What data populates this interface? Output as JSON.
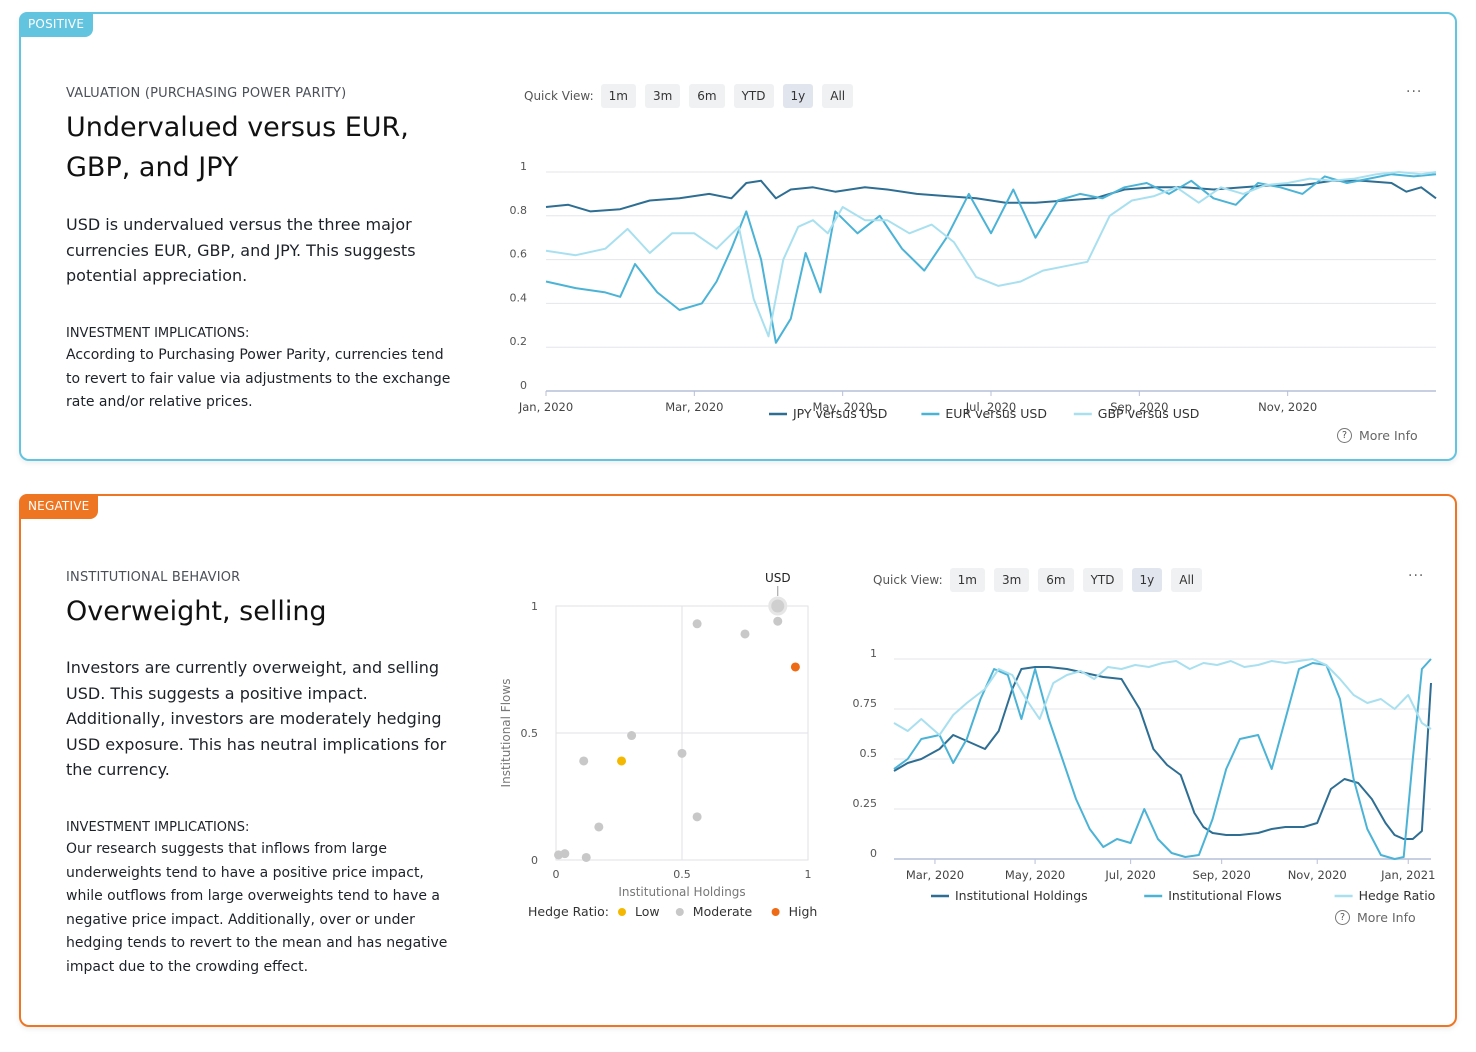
{
  "cards": [
    {
      "tag": "POSITIVE",
      "category": "VALUATION (PURCHASING POWER PARITY)",
      "headline_line1": "Undervalued versus EUR,",
      "headline_line2": "GBP, and JPY",
      "body_lines": [
        "USD is undervalued versus the three major",
        "currencies EUR, GBP, and JPY. This suggests",
        "potential appreciation."
      ],
      "implications_heading": "INVESTMENT IMPLICATIONS:",
      "implications_lines": [
        "According to Purchasing Power Parity, currencies tend",
        "to revert to fair value via adjustments to the exchange",
        "rate and/or relative prices."
      ],
      "quick_view": {
        "label": "Quick View:",
        "options": [
          "1m",
          "3m",
          "6m",
          "YTD",
          "1y",
          "All"
        ],
        "active": "1y"
      },
      "more_info": "More Info",
      "menu": "···"
    },
    {
      "tag": "NEGATIVE",
      "category": "INSTITUTIONAL BEHAVIOR",
      "headline_line1": "Overweight, selling",
      "body_lines": [
        "Investors are currently overweight, and selling",
        "USD. This suggests a positive impact.",
        "Additionally, investors are moderately hedging",
        "USD exposure. This has neutral implications for",
        "the currency."
      ],
      "implications_heading": "INVESTMENT IMPLICATIONS:",
      "implications_lines": [
        "Our research suggests that inflows from large",
        "underweights tend to have a positive price impact,",
        "while outflows from large overweights tend to have a",
        "negative price impact. Additionally, over or under",
        "hedging tends to revert to the mean and has negative",
        "impact due to the crowding effect."
      ],
      "quick_view": {
        "label": "Quick View:",
        "options": [
          "1m",
          "3m",
          "6m",
          "YTD",
          "1y",
          "All"
        ],
        "active": "1y"
      },
      "more_info": "More Info",
      "menu": "···"
    }
  ],
  "colors": {
    "positive": "#63c4df",
    "negative": "#ee7622",
    "dark_blue": "#2e6e93",
    "mid_blue": "#4bb3d6",
    "light_blue": "#a8e0f0",
    "low": "#f5b800",
    "moderate": "#c8c8c8",
    "high": "#ee6a14"
  },
  "chart_data": [
    {
      "type": "line",
      "x_range": [
        "2020-01-01",
        "2020-12-31"
      ],
      "ylim": [
        0,
        1
      ],
      "y_ticks": [
        "0",
        "0.2",
        "0.4",
        "0.6",
        "0.8",
        "1"
      ],
      "x_ticks": [
        "Jan, 2020",
        "Mar, 2020",
        "May, 2020",
        "Jul, 2020",
        "Sep, 2020",
        "Nov, 2020"
      ],
      "legend_position": "bottom",
      "series": [
        {
          "name": "JPY versus USD",
          "color": "#2e6e93",
          "x_month": [
            0,
            0.3,
            0.6,
            1,
            1.4,
            1.8,
            2.2,
            2.5,
            2.7,
            2.9,
            3.1,
            3.3,
            3.6,
            3.9,
            4.3,
            4.6,
            5,
            5.4,
            5.8,
            6.2,
            6.6,
            7,
            7.4,
            7.8,
            8.2,
            8.6,
            9,
            9.4,
            9.8,
            10.2,
            10.6,
            11,
            11.4,
            11.6,
            11.8,
            12
          ],
          "values": [
            0.84,
            0.85,
            0.82,
            0.83,
            0.87,
            0.88,
            0.9,
            0.88,
            0.95,
            0.96,
            0.88,
            0.92,
            0.93,
            0.91,
            0.93,
            0.92,
            0.9,
            0.89,
            0.88,
            0.86,
            0.86,
            0.87,
            0.88,
            0.92,
            0.93,
            0.93,
            0.92,
            0.93,
            0.94,
            0.94,
            0.96,
            0.96,
            0.95,
            0.91,
            0.93,
            0.88
          ]
        },
        {
          "name": "EUR versus USD",
          "color": "#4bb3d6",
          "x_month": [
            0,
            0.4,
            0.8,
            1,
            1.2,
            1.5,
            1.8,
            2.1,
            2.3,
            2.5,
            2.7,
            2.9,
            3.1,
            3.3,
            3.5,
            3.7,
            3.9,
            4.2,
            4.5,
            4.8,
            5.1,
            5.4,
            5.7,
            6,
            6.3,
            6.6,
            6.9,
            7.2,
            7.5,
            7.8,
            8.1,
            8.4,
            8.7,
            9,
            9.3,
            9.6,
            9.9,
            10.2,
            10.5,
            10.8,
            11.1,
            11.4,
            11.7,
            12
          ],
          "values": [
            0.5,
            0.47,
            0.45,
            0.43,
            0.58,
            0.45,
            0.37,
            0.4,
            0.5,
            0.65,
            0.82,
            0.6,
            0.22,
            0.33,
            0.63,
            0.45,
            0.82,
            0.72,
            0.8,
            0.65,
            0.55,
            0.7,
            0.9,
            0.72,
            0.92,
            0.7,
            0.87,
            0.9,
            0.88,
            0.93,
            0.95,
            0.9,
            0.96,
            0.88,
            0.85,
            0.95,
            0.93,
            0.9,
            0.98,
            0.95,
            0.97,
            0.99,
            0.98,
            0.99
          ]
        },
        {
          "name": "GBP versus USD",
          "color": "#a8e0f0",
          "x_month": [
            0,
            0.4,
            0.8,
            1.1,
            1.4,
            1.7,
            2,
            2.3,
            2.6,
            2.8,
            3,
            3.2,
            3.4,
            3.6,
            3.8,
            4,
            4.3,
            4.6,
            4.9,
            5.2,
            5.5,
            5.8,
            6.1,
            6.4,
            6.7,
            7,
            7.3,
            7.6,
            7.9,
            8.2,
            8.5,
            8.8,
            9.1,
            9.4,
            9.7,
            10,
            10.3,
            10.6,
            10.9,
            11.2,
            11.5,
            11.8,
            12
          ],
          "values": [
            0.64,
            0.62,
            0.65,
            0.74,
            0.63,
            0.72,
            0.72,
            0.65,
            0.75,
            0.42,
            0.25,
            0.6,
            0.75,
            0.78,
            0.72,
            0.84,
            0.78,
            0.78,
            0.72,
            0.76,
            0.68,
            0.52,
            0.48,
            0.5,
            0.55,
            0.57,
            0.59,
            0.8,
            0.87,
            0.89,
            0.93,
            0.86,
            0.93,
            0.9,
            0.94,
            0.95,
            0.97,
            0.96,
            0.97,
            0.99,
            1,
            0.99,
            1
          ]
        }
      ]
    },
    {
      "type": "scatter",
      "xlabel": "Institutional Holdings",
      "ylabel": "Institutional Flows",
      "xlim": [
        0,
        1
      ],
      "ylim": [
        0,
        1
      ],
      "x_ticks": [
        "0",
        "0.5",
        "1"
      ],
      "y_ticks": [
        "0",
        "0.5",
        "1"
      ],
      "highlight_label": "USD",
      "legend_title": "Hedge Ratio:",
      "legend_position": "bottom",
      "categories": [
        {
          "name": "Low",
          "color": "#f5b800"
        },
        {
          "name": "Moderate",
          "color": "#c8c8c8"
        },
        {
          "name": "High",
          "color": "#ee6a14"
        }
      ],
      "points": [
        {
          "x": 0.01,
          "y": 0.02,
          "cat": "Moderate"
        },
        {
          "x": 0.035,
          "y": 0.025,
          "cat": "Moderate"
        },
        {
          "x": 0.12,
          "y": 0.01,
          "cat": "Moderate"
        },
        {
          "x": 0.17,
          "y": 0.13,
          "cat": "Moderate"
        },
        {
          "x": 0.11,
          "y": 0.39,
          "cat": "Moderate"
        },
        {
          "x": 0.26,
          "y": 0.39,
          "cat": "Low"
        },
        {
          "x": 0.3,
          "y": 0.49,
          "cat": "Moderate"
        },
        {
          "x": 0.5,
          "y": 0.42,
          "cat": "Moderate"
        },
        {
          "x": 0.56,
          "y": 0.17,
          "cat": "Moderate"
        },
        {
          "x": 0.56,
          "y": 0.93,
          "cat": "Moderate"
        },
        {
          "x": 0.75,
          "y": 0.89,
          "cat": "Moderate"
        },
        {
          "x": 0.88,
          "y": 0.94,
          "cat": "Moderate"
        },
        {
          "x": 0.95,
          "y": 0.76,
          "cat": "High"
        },
        {
          "x": 0.88,
          "y": 1.0,
          "cat": "Moderate",
          "highlight": true
        }
      ]
    },
    {
      "type": "line",
      "x_range": [
        "2020-02-01",
        "2021-01-31"
      ],
      "ylim": [
        0,
        1
      ],
      "y_ticks": [
        "0",
        "0.25",
        "0.5",
        "0.75",
        "1"
      ],
      "x_ticks": [
        "Mar, 2020",
        "May, 2020",
        "Jul, 2020",
        "Sep, 2020",
        "Nov, 2020",
        "Jan, 2021"
      ],
      "legend_position": "bottom",
      "series": [
        {
          "name": "Institutional Holdings",
          "color": "#2e6e93",
          "x_month": [
            1,
            1.3,
            1.6,
            2,
            2.3,
            2.7,
            3,
            3.3,
            3.6,
            3.8,
            4.1,
            4.4,
            4.8,
            5.2,
            5.6,
            6,
            6.4,
            6.7,
            7,
            7.3,
            7.6,
            7.8,
            8,
            8.3,
            8.6,
            9,
            9.3,
            9.6,
            10,
            10.3,
            10.6,
            10.9,
            11.2,
            11.5,
            11.8,
            12,
            12.2,
            12.4,
            12.6,
            12.8
          ],
          "values": [
            0.44,
            0.48,
            0.5,
            0.55,
            0.62,
            0.58,
            0.55,
            0.64,
            0.85,
            0.95,
            0.96,
            0.96,
            0.95,
            0.93,
            0.91,
            0.9,
            0.75,
            0.55,
            0.47,
            0.42,
            0.23,
            0.16,
            0.13,
            0.12,
            0.12,
            0.13,
            0.15,
            0.16,
            0.16,
            0.18,
            0.35,
            0.4,
            0.38,
            0.3,
            0.18,
            0.12,
            0.1,
            0.1,
            0.14,
            0.88
          ]
        },
        {
          "name": "Institutional Flows",
          "color": "#4bb3d6",
          "x_month": [
            1,
            1.3,
            1.6,
            2,
            2.3,
            2.6,
            2.9,
            3.2,
            3.5,
            3.8,
            4.1,
            4.4,
            4.7,
            5,
            5.3,
            5.6,
            5.9,
            6.2,
            6.5,
            6.8,
            7.1,
            7.4,
            7.7,
            8,
            8.3,
            8.6,
            9,
            9.3,
            9.6,
            9.9,
            10.2,
            10.5,
            10.8,
            11.1,
            11.4,
            11.7,
            12,
            12.2,
            12.4,
            12.6,
            12.8
          ],
          "values": [
            0.45,
            0.5,
            0.6,
            0.62,
            0.48,
            0.6,
            0.8,
            0.95,
            0.92,
            0.7,
            0.95,
            0.7,
            0.5,
            0.3,
            0.15,
            0.06,
            0.1,
            0.08,
            0.25,
            0.1,
            0.03,
            0.01,
            0.02,
            0.2,
            0.45,
            0.6,
            0.62,
            0.45,
            0.7,
            0.95,
            0.98,
            0.97,
            0.8,
            0.4,
            0.15,
            0.02,
            0,
            0.01,
            0.5,
            0.95,
            1.0
          ]
        },
        {
          "name": "Hedge Ratio",
          "color": "#a8e0f0",
          "x_month": [
            1,
            1.3,
            1.6,
            2,
            2.3,
            2.6,
            3,
            3.3,
            3.6,
            3.9,
            4.2,
            4.5,
            4.8,
            5.1,
            5.4,
            5.7,
            6,
            6.3,
            6.6,
            6.9,
            7.2,
            7.5,
            7.8,
            8.1,
            8.4,
            8.7,
            9,
            9.3,
            9.6,
            9.9,
            10.2,
            10.5,
            10.8,
            11.1,
            11.4,
            11.7,
            12,
            12.3,
            12.6,
            12.8
          ],
          "values": [
            0.68,
            0.64,
            0.7,
            0.62,
            0.72,
            0.78,
            0.85,
            0.95,
            0.92,
            0.8,
            0.7,
            0.88,
            0.92,
            0.94,
            0.9,
            0.96,
            0.95,
            0.97,
            0.96,
            0.98,
            0.99,
            0.95,
            0.98,
            0.97,
            0.99,
            0.96,
            0.97,
            0.99,
            0.98,
            0.99,
            1.0,
            0.97,
            0.9,
            0.82,
            0.78,
            0.8,
            0.75,
            0.82,
            0.68,
            0.65
          ]
        }
      ]
    }
  ]
}
